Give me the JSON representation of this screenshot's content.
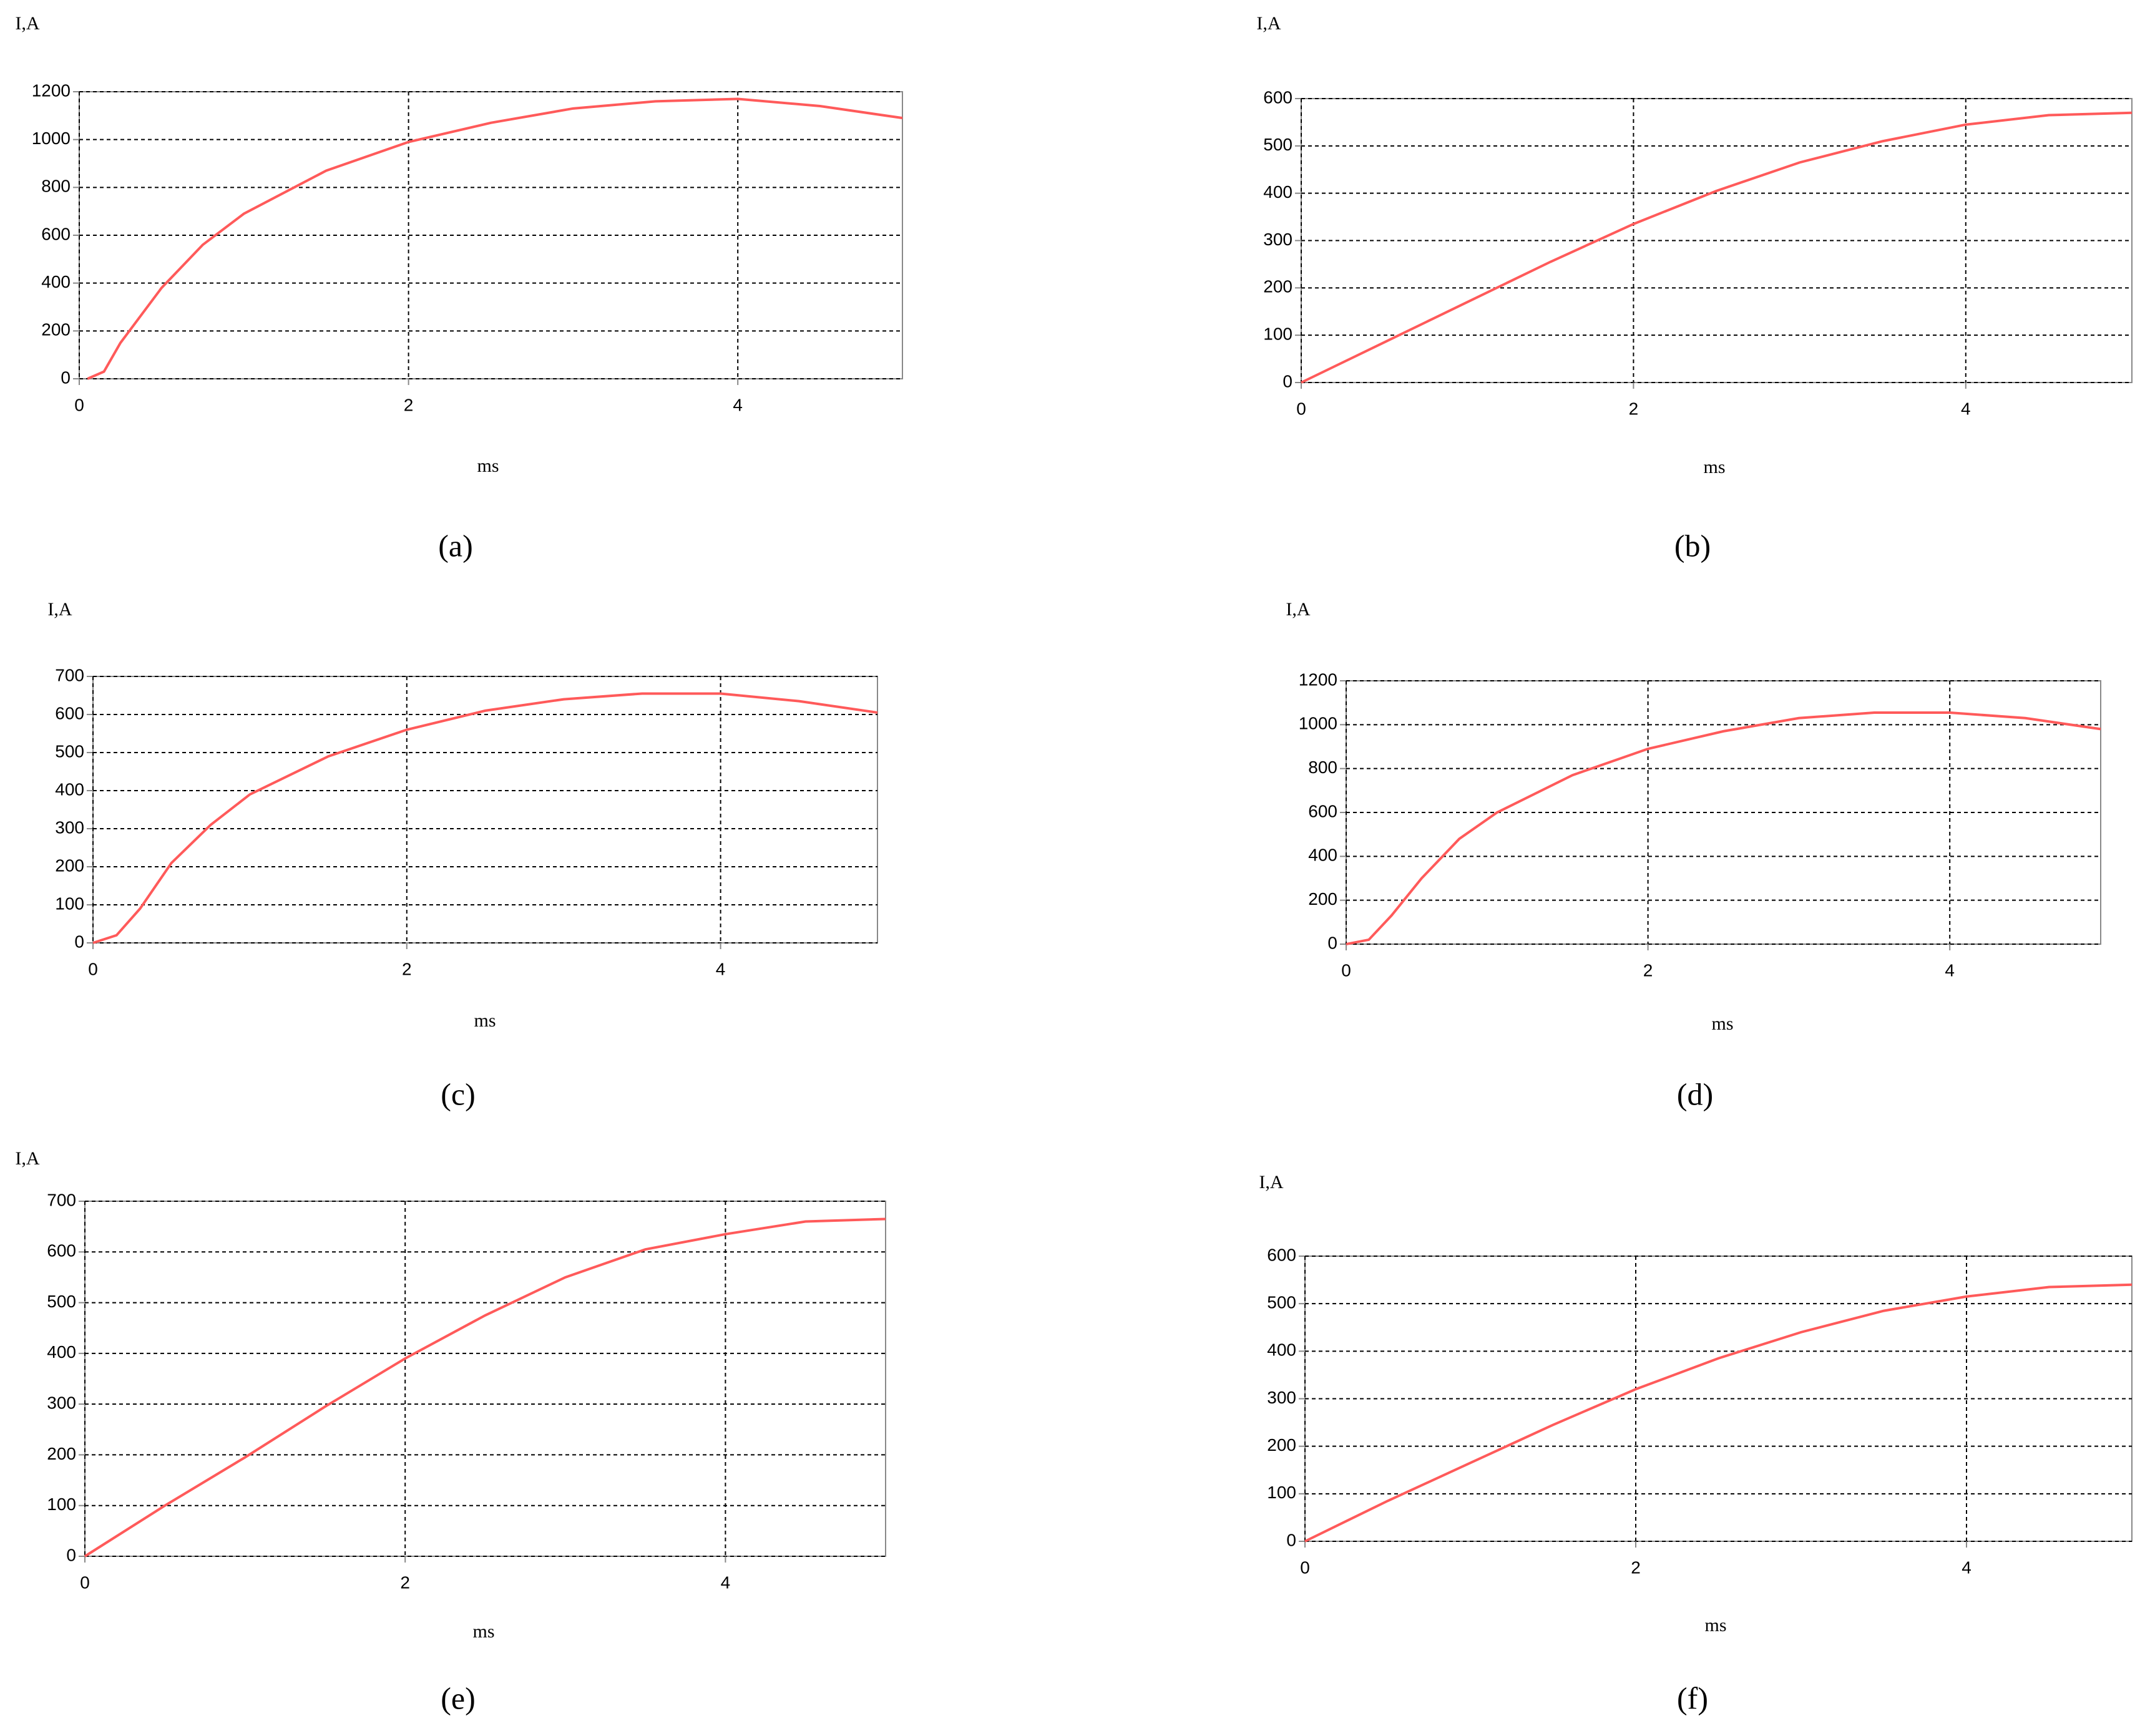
{
  "chart_data": [
    {
      "type": "line",
      "caption": "(a)",
      "y_label": "I,A",
      "x_label": "ms",
      "color": "#ff5a5a",
      "grid": true,
      "xlim": [
        0,
        5
      ],
      "xticks": [
        0,
        2,
        4
      ],
      "ylim": [
        0,
        1200
      ],
      "yticks": [
        0,
        200,
        400,
        600,
        800,
        1000,
        1200
      ],
      "x": [
        0.05,
        0.15,
        0.25,
        0.5,
        0.75,
        1,
        1.5,
        2,
        2.5,
        3,
        3.5,
        4,
        4.5,
        5
      ],
      "values": [
        0,
        30,
        150,
        380,
        560,
        690,
        870,
        990,
        1070,
        1130,
        1160,
        1170,
        1140,
        1090
      ]
    },
    {
      "type": "line",
      "caption": "(b)",
      "y_label": "I,A",
      "x_label": "ms",
      "color": "#ff5a5a",
      "grid": true,
      "xlim": [
        0,
        5
      ],
      "xticks": [
        0,
        2,
        4
      ],
      "ylim": [
        0,
        600
      ],
      "yticks": [
        0,
        100,
        200,
        300,
        400,
        500,
        600
      ],
      "x": [
        0,
        0.5,
        1,
        1.5,
        2,
        2.5,
        3,
        3.5,
        4,
        4.5,
        5
      ],
      "values": [
        0,
        85,
        170,
        255,
        335,
        405,
        465,
        510,
        545,
        565,
        570
      ]
    },
    {
      "type": "line",
      "caption": "(c)",
      "y_label": "I,A",
      "x_label": "ms",
      "color": "#ff5a5a",
      "grid": true,
      "xlim": [
        0,
        5
      ],
      "xticks": [
        0,
        2,
        4
      ],
      "ylim": [
        0,
        700
      ],
      "yticks": [
        0,
        100,
        200,
        300,
        400,
        500,
        600,
        700
      ],
      "x": [
        0,
        0.15,
        0.3,
        0.5,
        0.75,
        1,
        1.5,
        2,
        2.5,
        3,
        3.5,
        4,
        4.5,
        5
      ],
      "values": [
        0,
        20,
        90,
        210,
        310,
        390,
        490,
        560,
        610,
        640,
        655,
        655,
        635,
        605
      ]
    },
    {
      "type": "line",
      "caption": "(d)",
      "y_label": "I,A",
      "x_label": "ms",
      "color": "#ff5a5a",
      "grid": true,
      "xlim": [
        0,
        5
      ],
      "xticks": [
        0,
        2,
        4
      ],
      "ylim": [
        0,
        1200
      ],
      "yticks": [
        0,
        200,
        400,
        600,
        800,
        1000,
        1200
      ],
      "x": [
        0,
        0.15,
        0.3,
        0.5,
        0.75,
        1,
        1.5,
        2,
        2.5,
        3,
        3.5,
        4,
        4.5,
        5
      ],
      "values": [
        0,
        20,
        130,
        300,
        480,
        600,
        770,
        890,
        970,
        1030,
        1055,
        1055,
        1030,
        980
      ]
    },
    {
      "type": "line",
      "caption": "(e)",
      "y_label": "I,A",
      "x_label": "ms",
      "color": "#ff5a5a",
      "grid": true,
      "xlim": [
        0,
        5
      ],
      "xticks": [
        0,
        2,
        4
      ],
      "ylim": [
        0,
        700
      ],
      "yticks": [
        0,
        100,
        200,
        300,
        400,
        500,
        600,
        700
      ],
      "x": [
        0,
        0.5,
        1,
        1.5,
        2,
        2.5,
        3,
        3.5,
        4,
        4.5,
        5
      ],
      "values": [
        0,
        100,
        195,
        295,
        390,
        475,
        550,
        605,
        635,
        660,
        665
      ]
    },
    {
      "type": "line",
      "caption": "(f)",
      "y_label": "I,A",
      "x_label": "ms",
      "color": "#ff5a5a",
      "grid": true,
      "xlim": [
        0,
        5
      ],
      "xticks": [
        0,
        2,
        4
      ],
      "ylim": [
        0,
        600
      ],
      "yticks": [
        0,
        100,
        200,
        300,
        400,
        500,
        600
      ],
      "x": [
        0,
        0.5,
        1,
        1.5,
        2,
        2.5,
        3,
        3.5,
        4,
        4.5,
        5
      ],
      "values": [
        0,
        85,
        165,
        245,
        320,
        385,
        440,
        485,
        515,
        535,
        540
      ]
    }
  ]
}
